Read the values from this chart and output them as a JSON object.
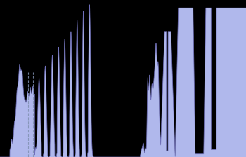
{
  "figure_bg": "#000000",
  "axes_bg": "#000000",
  "fill_color": "#b0b8ec",
  "edge_color": "#7070bb",
  "dashed_color": "#8090b0",
  "figsize": [
    3.5,
    2.24
  ],
  "dpi": 100
}
